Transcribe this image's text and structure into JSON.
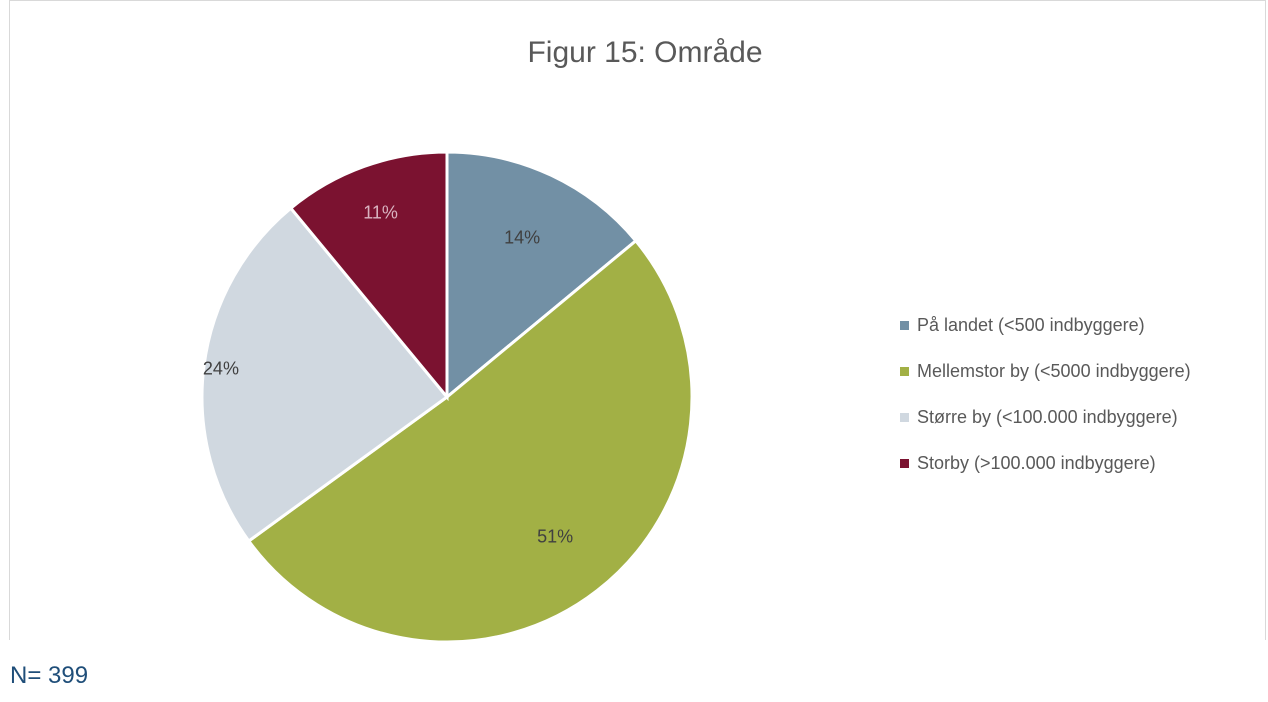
{
  "chart_data": {
    "type": "pie",
    "title": "Figur 15: Område",
    "categories": [
      "På landet (<500 indbyggere)",
      "Mellemstor by (<5000 indbyggere)",
      "Større by (<100.000 indbyggere)",
      "Storby (>100.000 indbyggere)"
    ],
    "values": [
      14,
      51,
      24,
      11
    ],
    "data_labels": [
      "14%",
      "51%",
      "24%",
      "11%"
    ],
    "colors": [
      "#7290a5",
      "#a2b045",
      "#d0d8e0",
      "#7b1230"
    ],
    "legend_position": "right"
  },
  "footer": {
    "n_label": "N= 399"
  }
}
